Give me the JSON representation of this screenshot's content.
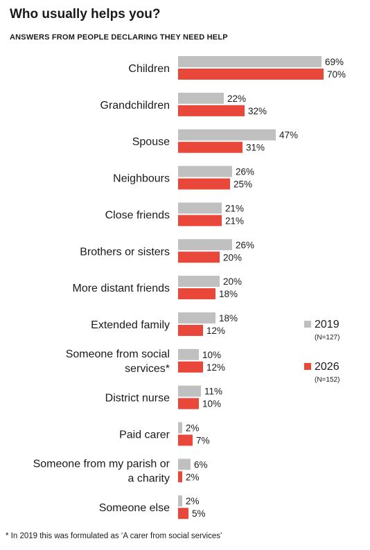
{
  "title": "Who usually helps you?",
  "subtitle": "ANSWERS FROM PEOPLE DECLARING THEY NEED HELP",
  "footnote": "* In 2019 this was formulated as ‘A carer from social services’",
  "chart_data": {
    "type": "bar",
    "orientation": "horizontal",
    "categories": [
      [
        "Children"
      ],
      [
        "Grandchildren"
      ],
      [
        "Spouse"
      ],
      [
        "Neighbours"
      ],
      [
        "Close friends"
      ],
      [
        "Brothers or sisters"
      ],
      [
        "More distant friends"
      ],
      [
        "Extended family"
      ],
      [
        "Someone from social",
        "services*"
      ],
      [
        "District nurse"
      ],
      [
        "Paid carer"
      ],
      [
        "Someone from my parish or",
        "a charity"
      ],
      [
        "Someone else"
      ]
    ],
    "series": [
      {
        "name": "2019",
        "note": "(N=127)",
        "color": "#c0c0c0",
        "values": [
          69,
          22,
          47,
          26,
          21,
          26,
          20,
          18,
          10,
          11,
          2,
          6,
          2
        ],
        "labels": [
          "69%",
          "22%",
          "47%",
          "26%",
          "21%",
          "26%",
          "20%",
          "18%",
          "10%",
          "11%",
          "2%",
          "6%",
          "2%"
        ]
      },
      {
        "name": "2026",
        "note": "(N=152)",
        "color": "#e8473a",
        "values": [
          70,
          32,
          31,
          25,
          21,
          20,
          18,
          12,
          12,
          10,
          7,
          2,
          5
        ],
        "labels": [
          "70%",
          "32%",
          "31%",
          "25%",
          "21%",
          "20%",
          "18%",
          "12%",
          "12%",
          "10%",
          "7%",
          "2%",
          "5%"
        ]
      }
    ],
    "legend_position": "right",
    "grid": false
  }
}
